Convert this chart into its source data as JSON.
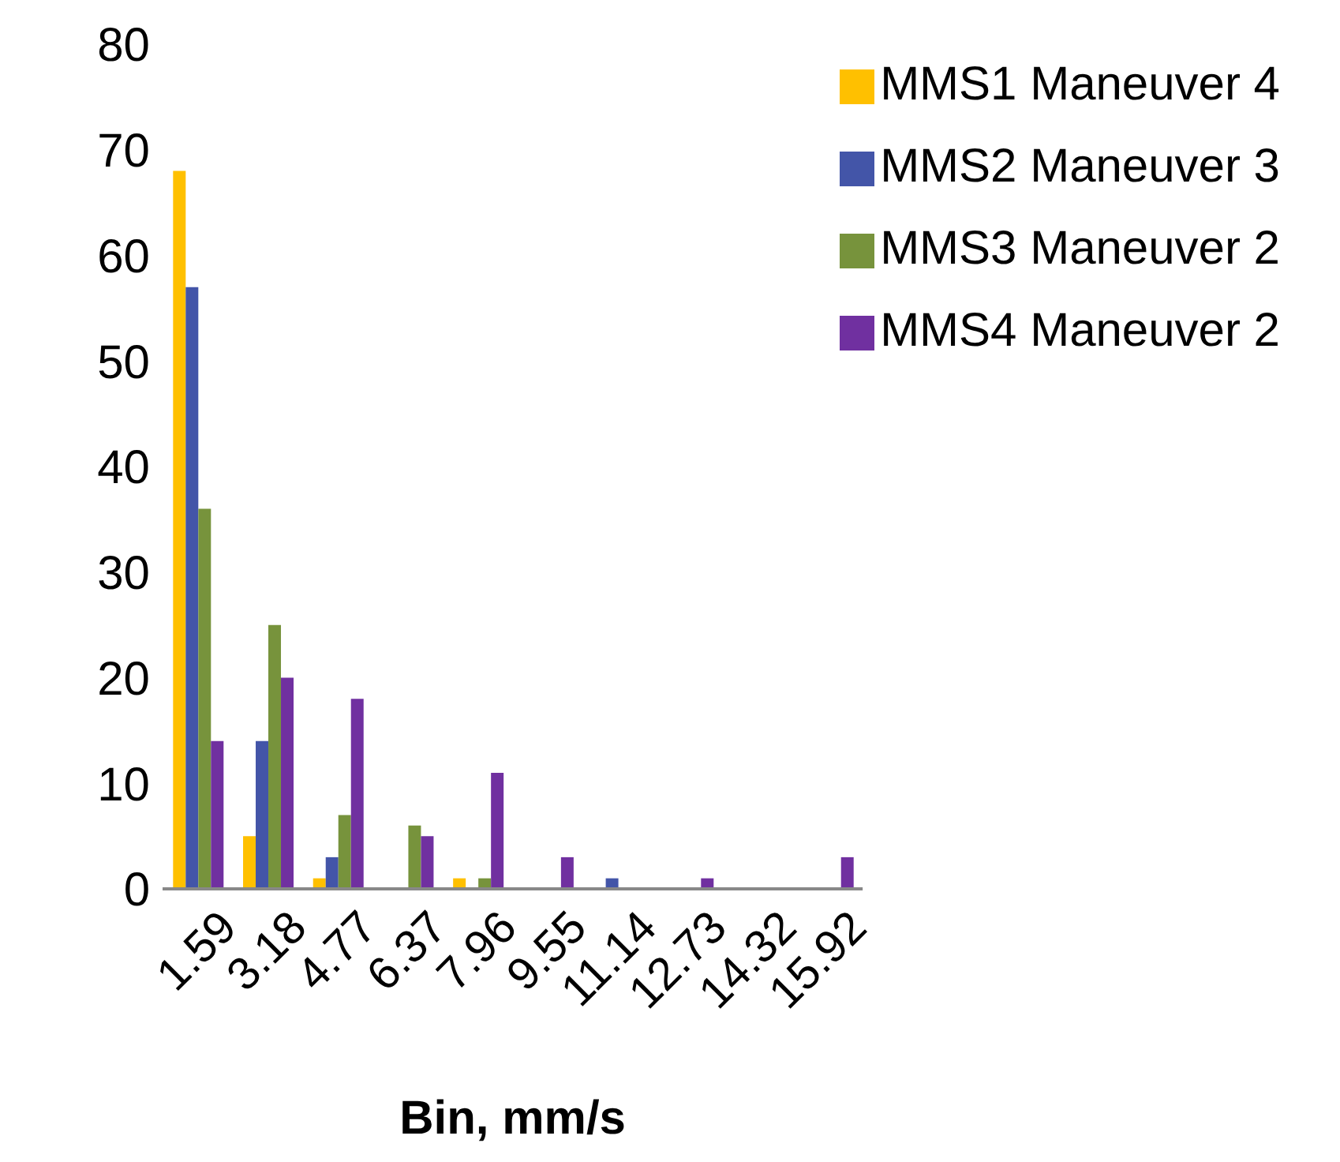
{
  "chart_data": {
    "type": "bar",
    "xlabel": "Bin, mm/s",
    "categories": [
      "1.59",
      "3.18",
      "4.77",
      "6.37",
      "7.96",
      "9.55",
      "11.14",
      "12.73",
      "14.32",
      "15.92"
    ],
    "series": [
      {
        "name": "MMS1 Maneuver 4",
        "color": "#ffc000",
        "values": [
          68,
          5,
          1,
          0,
          1,
          0,
          0,
          0,
          0,
          0
        ]
      },
      {
        "name": "MMS2 Maneuver 3",
        "color": "#4355a8",
        "values": [
          57,
          14,
          3,
          0,
          0,
          0,
          1,
          0,
          0,
          0
        ]
      },
      {
        "name": "MMS3 Maneuver 2",
        "color": "#77933c",
        "values": [
          36,
          25,
          7,
          6,
          1,
          0,
          0,
          0,
          0,
          0
        ]
      },
      {
        "name": "MMS4 Maneuver 2",
        "color": "#7030a0",
        "values": [
          14,
          20,
          18,
          5,
          11,
          3,
          0,
          1,
          0,
          3
        ]
      }
    ],
    "ylim": [
      0,
      80
    ],
    "yticks": [
      0,
      10,
      20,
      30,
      40,
      50,
      60,
      70,
      80
    ],
    "grid": false,
    "legend": "top right"
  }
}
